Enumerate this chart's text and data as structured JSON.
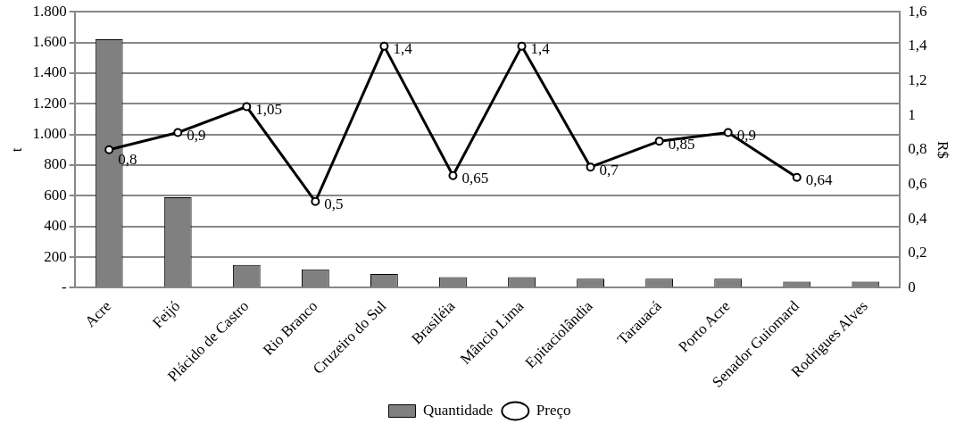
{
  "chart_data": {
    "type": "bar",
    "categories": [
      "Acre",
      "Feijó",
      "Plácido de Castro",
      "Rio Branco",
      "Cruzeiro do Sul",
      "Brasiléia",
      "Mâncio Lima",
      "Epitaciolândia",
      "Tarauacá",
      "Porto Acre",
      "Senador Guiomard",
      "Rodrigues Alves"
    ],
    "ylabel": "t",
    "y2label": "R$",
    "series": [
      {
        "name": "Quantidade",
        "color": "#808080",
        "values": [
          1620,
          590,
          150,
          120,
          90,
          70,
          70,
          60,
          60,
          60,
          40,
          40
        ]
      },
      {
        "name": "Preço",
        "type": "line",
        "axis": "y2",
        "color": "#000000",
        "values": [
          0.8,
          0.9,
          1.05,
          0.5,
          1.4,
          0.65,
          1.4,
          0.7,
          0.85,
          0.9,
          0.64,
          null
        ],
        "value_labels": [
          "0,8",
          "0,9",
          "1,05",
          "0,5",
          "1,4",
          "0,65",
          "1,4",
          "0,7",
          "0,85",
          "0,9",
          "0,64",
          null
        ]
      }
    ],
    "ylim": [
      0,
      1800
    ],
    "yticks": [
      {
        "value": 0,
        "label": "-"
      },
      {
        "value": 200,
        "label": "200"
      },
      {
        "value": 400,
        "label": "400"
      },
      {
        "value": 600,
        "label": "600"
      },
      {
        "value": 800,
        "label": "800"
      },
      {
        "value": 1000,
        "label": "1.000"
      },
      {
        "value": 1200,
        "label": "1.200"
      },
      {
        "value": 1400,
        "label": "1.400"
      },
      {
        "value": 1600,
        "label": "1.600"
      },
      {
        "value": 1800,
        "label": "1.800"
      }
    ],
    "y2lim": [
      0,
      1.6
    ],
    "y2ticks": [
      0,
      {
        "value": 0.2,
        "label": "0,2"
      },
      {
        "value": 0.4,
        "label": "0,4"
      },
      {
        "value": 0.6,
        "label": "0,6"
      },
      {
        "value": 0.8,
        "label": "0,8"
      },
      1,
      {
        "value": 1.2,
        "label": "1,2"
      },
      {
        "value": 1.4,
        "label": "1,4"
      },
      {
        "value": 1.6,
        "label": "1,6"
      }
    ],
    "grid": "y",
    "legend": "bottom",
    "marker": "circle",
    "line_style": "solid"
  }
}
